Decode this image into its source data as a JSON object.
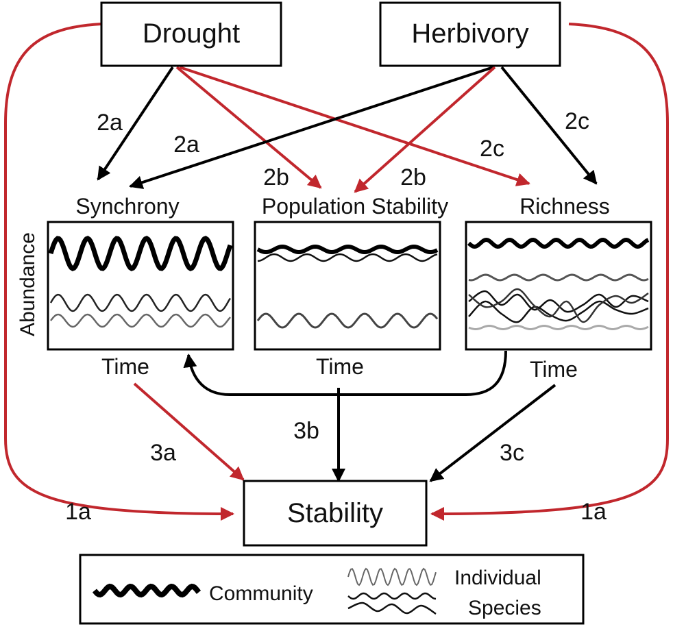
{
  "nodes": {
    "drought": "Drought",
    "herbivory": "Herbivory",
    "stability": "Stability",
    "synchrony": "Synchrony",
    "population_stability": "Population Stability",
    "richness": "Richness"
  },
  "axes": {
    "y_label": "Abundance",
    "x_label": "Time"
  },
  "path_labels": {
    "p1a": "1a",
    "p2a": "2a",
    "p2b": "2b",
    "p2c": "2c",
    "p3a": "3a",
    "p3b": "3b",
    "p3c": "3c"
  },
  "legend": {
    "community": "Community",
    "individual_line1": "Individual",
    "individual_line2": "Species"
  },
  "colors": {
    "red_path": "#c1272d",
    "black_path": "#000000"
  }
}
